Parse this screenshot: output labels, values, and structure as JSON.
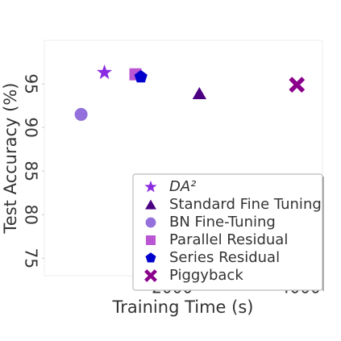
{
  "chart_data": {
    "type": "scatter",
    "x_label": "Training Time (s)",
    "y_label": "Test Accuracy (%)",
    "xlim": [
      0,
      4350
    ],
    "ylim": [
      73,
      100
    ],
    "xticks": [
      2000,
      4000
    ],
    "yticks": [
      75,
      80,
      85,
      90,
      95
    ],
    "legend": "lower right",
    "series": [
      {
        "name": "DA²",
        "color": "#8a2be2",
        "marker": "star",
        "x": [
          940
        ],
        "values": [
          96.3
        ]
      },
      {
        "name": "Standard Fine Tuning",
        "color": "#4b0082",
        "marker": "triangle",
        "x": [
          2425
        ],
        "values": [
          93.9
        ]
      },
      {
        "name": "BN Fine-Tuning",
        "color": "#9370db",
        "marker": "circle",
        "x": [
          575
        ],
        "values": [
          91.5
        ]
      },
      {
        "name": "Parallel Residual",
        "color": "#ba55d3",
        "marker": "square",
        "x": [
          1425
        ],
        "values": [
          96.1
        ]
      },
      {
        "name": "Series Residual",
        "color": "#0000cd",
        "marker": "pentagon",
        "x": [
          1510
        ],
        "values": [
          95.8
        ]
      },
      {
        "name": "Piggyback",
        "color": "#8b008b",
        "marker": "x",
        "x": [
          3950
        ],
        "values": [
          94.9
        ]
      }
    ]
  }
}
